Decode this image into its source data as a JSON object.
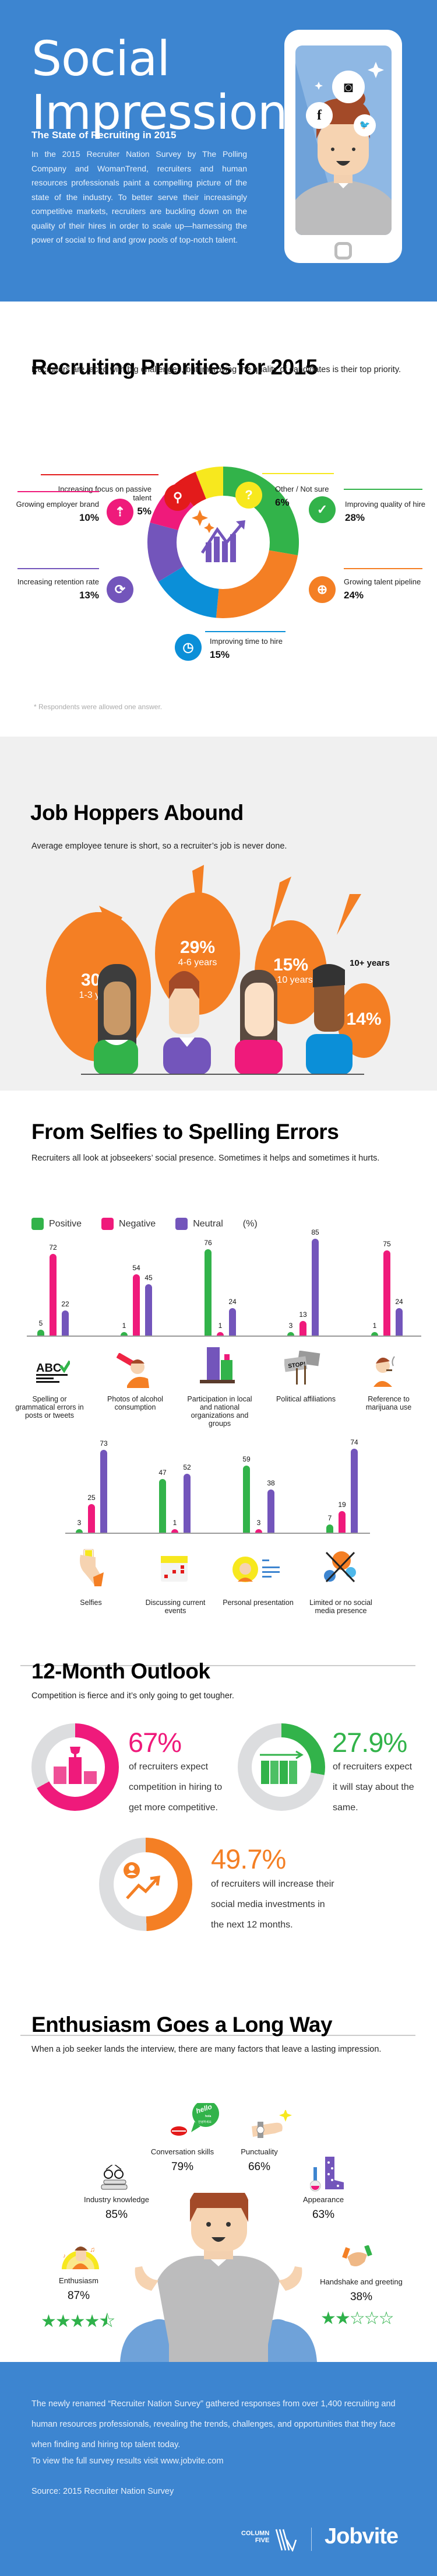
{
  "header": {
    "title_line1": "Social",
    "title_line2": "Impressions",
    "subtitle": "The State of Recruiting in 2015",
    "intro": "In the 2015 Recruiter Nation Survey by The Polling Company and WomanTrend, recruiters and human resources professionals paint a compelling picture of the state of the industry. To better serve their increasingly competitive markets, recruiters are buckling down on the quality of their hires in order to scale up—harnessing the power of social to find and grow pools of top-notch talent.",
    "phone_icons": [
      "instagram-icon",
      "facebook-icon",
      "twitter-icon"
    ],
    "phone_glyphs": {
      "instagram": "◙",
      "facebook": "f",
      "twitter": "🐦"
    }
  },
  "priorities": {
    "title": "Recruiting Priorities for 2015",
    "subtitle": "Recruiters are faced with big challenges, but improving the quality of candidates is their top priority.",
    "items": [
      {
        "label": "Increasing focus on passive talent",
        "pct": "5%",
        "color": "#e31b1b",
        "icon": "⚲"
      },
      {
        "label": "Other / Not sure",
        "pct": "6%",
        "color": "#f7e81e",
        "icon": "?"
      },
      {
        "label": "Growing employer brand",
        "pct": "10%",
        "color": "#ef1a7b",
        "icon": "⇡"
      },
      {
        "label": "Improving quality of hire",
        "pct": "28%",
        "color": "#32b34a",
        "icon": "✓"
      },
      {
        "label": "Increasing retention rate",
        "pct": "13%",
        "color": "#7355bb",
        "icon": "⟳"
      },
      {
        "label": "Growing talent pipeline",
        "pct": "24%",
        "color": "#f47f24",
        "icon": "⊕"
      },
      {
        "label": "Improving time to hire",
        "pct": "15%",
        "color": "#0b8fd8",
        "icon": "◷"
      }
    ],
    "note": "* Respondents were allowed one answer."
  },
  "hoppers": {
    "title": "Job Hoppers Abound",
    "subtitle": "Average employee tenure is short, so a recruiter’s job is never done.",
    "bubbles": [
      {
        "pct": "30%",
        "years": "1-3 years"
      },
      {
        "pct": "29%",
        "years": "4-6 years"
      },
      {
        "pct": "15%",
        "years": "7-10 years"
      },
      {
        "pct": "14%",
        "years": "10+ years"
      }
    ]
  },
  "selfies": {
    "title": "From Selfies to Spelling Errors",
    "subtitle": "Recruiters all look at jobseekers’ social presence. Sometimes it helps and sometimes it hurts.",
    "legend": {
      "positive": "Positive",
      "negative": "Negative",
      "neutral": "Neutral",
      "unit": "(%)"
    },
    "colors": {
      "positive": "#32b34a",
      "negative": "#ef1a7b",
      "neutral": "#7355bb"
    }
  },
  "chart_data": [
    {
      "type": "pie",
      "title": "Recruiting Priorities for 2015",
      "categories": [
        "Improving quality of hire",
        "Growing talent pipeline",
        "Improving time to hire",
        "Increasing retention rate",
        "Growing employer brand",
        "Increasing focus on passive talent",
        "Other / Not sure"
      ],
      "values": [
        28,
        24,
        15,
        13,
        10,
        5,
        6
      ],
      "colors": [
        "#32b34a",
        "#f47f24",
        "#0b8fd8",
        "#7355bb",
        "#ef1a7b",
        "#e31b1b",
        "#f7e81e"
      ],
      "note": "* Respondents were allowed one answer."
    },
    {
      "type": "bar",
      "title": "Job Hoppers Abound",
      "categories": [
        "1-3 years",
        "4-6 years",
        "7-10 years",
        "10+ years"
      ],
      "values": [
        30,
        29,
        15,
        14
      ],
      "ylabel": "%"
    },
    {
      "type": "bar",
      "title": "From Selfies to Spelling Errors",
      "ylabel": "(%)",
      "categories": [
        "Spelling or grammatical errors in posts or tweets",
        "Photos of alcohol consumption",
        "Participation in local and national organizations and groups",
        "Political affiliations",
        "Reference to marijuana use",
        "Selfies",
        "Discussing current events",
        "Personal presentation",
        "Limited or no social media presence"
      ],
      "series": [
        {
          "name": "Positive",
          "values": [
            5,
            1,
            76,
            3,
            1,
            3,
            47,
            59,
            7
          ]
        },
        {
          "name": "Negative",
          "values": [
            72,
            54,
            1,
            13,
            75,
            25,
            1,
            3,
            19
          ]
        },
        {
          "name": "Neutral",
          "values": [
            22,
            45,
            24,
            85,
            24,
            73,
            52,
            38,
            74
          ]
        }
      ]
    },
    {
      "type": "pie",
      "title": "12-Month Outlook",
      "categories": [
        "More competitive",
        "About the same",
        "Increase social media investments"
      ],
      "values": [
        67,
        27.9,
        49.7
      ]
    },
    {
      "type": "bar",
      "title": "Enthusiasm Goes a Long Way",
      "categories": [
        "Enthusiasm",
        "Industry knowledge",
        "Conversation skills",
        "Punctuality",
        "Appearance",
        "Handshake and greeting"
      ],
      "values": [
        87,
        85,
        79,
        66,
        63,
        38
      ]
    }
  ],
  "chart_rows": {
    "row1": [
      {
        "label": "Spelling or grammatical errors in posts or tweets",
        "pos": 5,
        "neg": 72,
        "neu": 22,
        "pos_t": "5",
        "neg_t": "72",
        "neu_t": "22"
      },
      {
        "label": "Photos of alcohol consumption",
        "pos": 1,
        "neg": 54,
        "neu": 45,
        "pos_t": "1",
        "neg_t": "54",
        "neu_t": "45"
      },
      {
        "label": "Participation in local and national organizations and groups",
        "pos": 76,
        "neg": 1,
        "neu": 24,
        "pos_t": "76",
        "neg_t": "1",
        "neu_t": "24"
      },
      {
        "label": "Political affiliations",
        "pos": 3,
        "neg": 13,
        "neu": 85,
        "pos_t": "3",
        "neg_t": "13",
        "neu_t": "85"
      },
      {
        "label": "Reference to marijuana use",
        "pos": 1,
        "neg": 75,
        "neu": 24,
        "pos_t": "1",
        "neg_t": "75",
        "neu_t": "24"
      }
    ],
    "row2": [
      {
        "label": "Selfies",
        "pos": 3,
        "neg": 25,
        "neu": 73,
        "pos_t": "3",
        "neg_t": "25",
        "neu_t": "73"
      },
      {
        "label": "Discussing current events",
        "pos": 47,
        "neg": 1,
        "neu": 52,
        "pos_t": "47",
        "neg_t": "1",
        "neu_t": "52"
      },
      {
        "label": "Personal presentation",
        "pos": 59,
        "neg": 3,
        "neu": 38,
        "pos_t": "59",
        "neg_t": "3",
        "neu_t": "38"
      },
      {
        "label": "Limited or no social media presence",
        "pos": 7,
        "neg": 19,
        "neu": 74,
        "pos_t": "7",
        "neg_t": "19",
        "neu_t": "74"
      }
    ]
  },
  "outlook": {
    "title": "12-Month Outlook",
    "subtitle": "Competition is fierce and it’s only going to get tougher.",
    "stats": [
      {
        "value": "67%",
        "text": "of recruiters expect competition in hiring to get more competitive.",
        "color": "#ef1a7b",
        "pct": 67
      },
      {
        "value": "27.9%",
        "text": "of recruiters expect it will stay about the same.",
        "color": "#32b34a",
        "pct": 27.9
      },
      {
        "value": "49.7%",
        "text": "of recruiters will increase their social media investments in the next 12 months.",
        "color": "#f47f24",
        "pct": 49.7
      }
    ]
  },
  "enthusiasm": {
    "title": "Enthusiasm Goes a Long Way",
    "subtitle": "When a job seeker lands the interview, there are many factors that leave a lasting impression.",
    "items": [
      {
        "label": "Conversation skills",
        "pct": "79%"
      },
      {
        "label": "Punctuality",
        "pct": "66%"
      },
      {
        "label": "Industry knowledge",
        "pct": "85%"
      },
      {
        "label": "Appearance",
        "pct": "63%"
      },
      {
        "label": "Enthusiasm",
        "pct": "87%",
        "stars": "★★★★⯪"
      },
      {
        "label": "Handshake and greeting",
        "pct": "38%",
        "stars": "★★☆☆☆"
      }
    ],
    "bubble": {
      "hello": "hello",
      "hola": "hola",
      "korean": "안녕하세요"
    }
  },
  "footer": {
    "para": "The newly renamed “Recruiter Nation Survey” gathered responses from over 1,400 recruiting and human resources professionals, revealing the trends, challenges, and opportunities that they face when finding and hiring top talent today.",
    "visit": "To view the full survey results visit www.jobvite.com",
    "source": "Source: 2015 Recruiter Nation Survey",
    "logo1_line1": "COLUMN",
    "logo1_line2": "FIVE",
    "logo2": "Jobvite"
  }
}
